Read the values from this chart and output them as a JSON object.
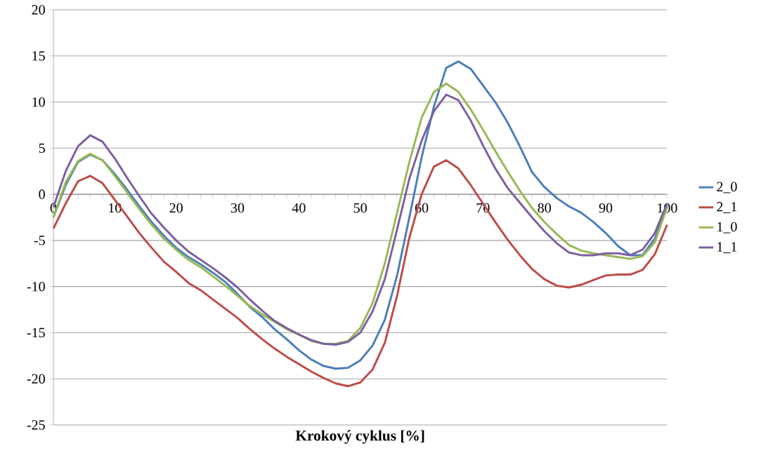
{
  "chart_data": {
    "type": "line",
    "xlabel": "Krokový cyklus [%]",
    "x": [
      0,
      2,
      4,
      6,
      8,
      10,
      12,
      14,
      16,
      18,
      20,
      22,
      24,
      26,
      28,
      30,
      32,
      34,
      36,
      38,
      40,
      42,
      44,
      46,
      48,
      50,
      52,
      54,
      56,
      58,
      60,
      62,
      64,
      66,
      68,
      70,
      72,
      74,
      76,
      78,
      80,
      82,
      84,
      86,
      88,
      90,
      92,
      94,
      96,
      98,
      100
    ],
    "xlim": [
      0,
      100
    ],
    "xticks": [
      0,
      10,
      20,
      30,
      40,
      50,
      60,
      70,
      80,
      90,
      100
    ],
    "ylim": [
      -25,
      20
    ],
    "yticks": [
      -25,
      -20,
      -15,
      -10,
      -5,
      0,
      5,
      10,
      15,
      20
    ],
    "grid": "y",
    "legend": "right",
    "marker": "none",
    "line_style": "solid",
    "series": [
      {
        "name": "2_0",
        "color": "#4a7ebb",
        "values": [
          -2.5,
          1.0,
          3.5,
          4.3,
          3.7,
          2.2,
          0.5,
          -1.3,
          -3.0,
          -4.5,
          -5.8,
          -6.8,
          -7.6,
          -8.5,
          -9.5,
          -10.8,
          -12.2,
          -13.3,
          -14.6,
          -15.7,
          -16.9,
          -17.9,
          -18.6,
          -18.9,
          -18.8,
          -18.0,
          -16.4,
          -13.6,
          -8.8,
          -2.5,
          4.0,
          9.5,
          13.7,
          14.4,
          13.6,
          11.8,
          10.0,
          7.8,
          5.2,
          2.4,
          0.8,
          -0.4,
          -1.3,
          -2.0,
          -3.0,
          -4.2,
          -5.6,
          -6.6,
          -6.6,
          -4.8,
          -1.2
        ]
      },
      {
        "name": "2_1",
        "color": "#be4b48",
        "values": [
          -3.7,
          -1.0,
          1.4,
          2.0,
          1.2,
          -0.6,
          -2.4,
          -4.2,
          -5.8,
          -7.3,
          -8.4,
          -9.6,
          -10.4,
          -11.4,
          -12.4,
          -13.4,
          -14.6,
          -15.7,
          -16.7,
          -17.6,
          -18.4,
          -19.2,
          -19.9,
          -20.5,
          -20.8,
          -20.4,
          -19.0,
          -16.1,
          -11.0,
          -4.7,
          0.0,
          3.0,
          3.7,
          2.8,
          1.0,
          -1.0,
          -3.0,
          -4.9,
          -6.6,
          -8.1,
          -9.2,
          -9.9,
          -10.1,
          -9.8,
          -9.3,
          -8.8,
          -8.7,
          -8.7,
          -8.2,
          -6.5,
          -3.3
        ]
      },
      {
        "name": "1_0",
        "color": "#98b954",
        "values": [
          -2.5,
          1.3,
          3.6,
          4.4,
          3.7,
          2.0,
          0.2,
          -1.6,
          -3.3,
          -4.8,
          -6.0,
          -7.1,
          -7.9,
          -8.9,
          -9.9,
          -11.0,
          -12.1,
          -13.0,
          -13.8,
          -14.6,
          -15.2,
          -15.9,
          -16.2,
          -16.2,
          -15.9,
          -14.5,
          -11.8,
          -7.5,
          -2.0,
          3.5,
          8.3,
          11.1,
          12.0,
          11.1,
          9.2,
          7.0,
          4.7,
          2.5,
          0.4,
          -1.5,
          -3.0,
          -4.3,
          -5.5,
          -6.1,
          -6.4,
          -6.6,
          -6.8,
          -7.0,
          -6.7,
          -5.2,
          -1.4
        ]
      },
      {
        "name": "1_1",
        "color": "#7d5fa0",
        "values": [
          -1.4,
          2.5,
          5.2,
          6.4,
          5.7,
          3.9,
          1.8,
          -0.2,
          -2.1,
          -3.6,
          -5.0,
          -6.2,
          -7.1,
          -8.0,
          -9.0,
          -10.1,
          -11.4,
          -12.6,
          -13.7,
          -14.5,
          -15.2,
          -15.8,
          -16.2,
          -16.3,
          -16.0,
          -15.0,
          -12.7,
          -9.2,
          -3.8,
          1.7,
          5.8,
          9.0,
          10.8,
          10.2,
          8.0,
          5.3,
          2.8,
          0.7,
          -0.9,
          -2.5,
          -4.0,
          -5.3,
          -6.3,
          -6.6,
          -6.6,
          -6.4,
          -6.4,
          -6.6,
          -6.0,
          -4.2,
          -1.0
        ]
      }
    ]
  }
}
